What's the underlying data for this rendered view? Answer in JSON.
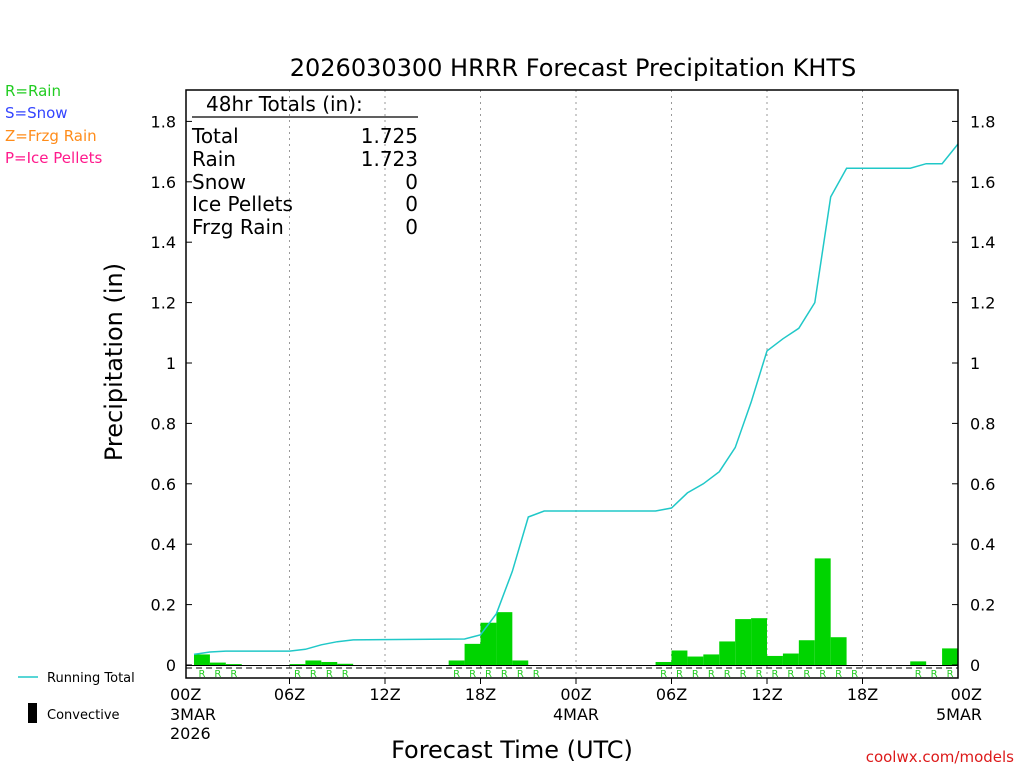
{
  "chart_data": {
    "type": "bar",
    "title": "2026030300 HRRR Forecast Precipitation KHTS",
    "xlabel": "Forecast Time (UTC)",
    "ylabel": "Precipitation (in)",
    "ylim": [
      0,
      1.9
    ],
    "xlim_hours": [
      0,
      48
    ],
    "yticks": [
      0,
      0.2,
      0.4,
      0.6,
      0.8,
      1,
      1.2,
      1.4,
      1.6,
      1.8
    ],
    "ytick_labels": [
      "0",
      "0.2",
      "0.4",
      "0.6",
      "0.8",
      "1",
      "1.2",
      "1.4",
      "1.6",
      "1.8"
    ],
    "xticks": [
      {
        "hour": 0,
        "label": "00Z",
        "sub1": "3MAR",
        "sub2": "2026"
      },
      {
        "hour": 6,
        "label": "06Z",
        "sub1": "",
        "sub2": ""
      },
      {
        "hour": 12,
        "label": "12Z",
        "sub1": "",
        "sub2": ""
      },
      {
        "hour": 18,
        "label": "18Z",
        "sub1": "",
        "sub2": ""
      },
      {
        "hour": 24,
        "label": "00Z",
        "sub1": "4MAR",
        "sub2": ""
      },
      {
        "hour": 30,
        "label": "06Z",
        "sub1": "",
        "sub2": ""
      },
      {
        "hour": 36,
        "label": "12Z",
        "sub1": "",
        "sub2": ""
      },
      {
        "hour": 42,
        "label": "18Z",
        "sub1": "",
        "sub2": ""
      },
      {
        "hour": 48,
        "label": "00Z",
        "sub1": "5MAR",
        "sub2": ""
      }
    ],
    "hourly_precip": {
      "name": "Rain",
      "color": "#00d400",
      "hours": [
        1,
        2,
        3,
        7,
        8,
        9,
        10,
        17,
        18,
        19,
        20,
        21,
        22,
        30,
        31,
        32,
        33,
        34,
        35,
        36,
        37,
        38,
        39,
        40,
        41,
        46,
        48
      ],
      "values": [
        0.035,
        0.008,
        0.003,
        0.003,
        0.015,
        0.01,
        0.004,
        0.015,
        0.07,
        0.14,
        0.175,
        0.015,
        0.0,
        0.01,
        0.048,
        0.028,
        0.035,
        0.078,
        0.152,
        0.155,
        0.03,
        0.038,
        0.082,
        0.353,
        0.092,
        0.012,
        0.055
      ]
    },
    "running_total": {
      "name": "Running Total",
      "color": "#20c8c8",
      "hours": [
        0,
        1,
        2,
        3,
        6,
        7,
        8,
        9,
        10,
        17,
        18,
        19,
        20,
        21,
        22,
        29,
        30,
        31,
        32,
        33,
        34,
        35,
        36,
        37,
        38,
        39,
        40,
        41,
        45,
        46,
        47,
        48
      ],
      "values": [
        0.035,
        0.043,
        0.046,
        0.046,
        0.046,
        0.052,
        0.067,
        0.077,
        0.083,
        0.086,
        0.1,
        0.17,
        0.31,
        0.49,
        0.51,
        0.51,
        0.52,
        0.57,
        0.6,
        0.64,
        0.72,
        0.87,
        1.04,
        1.08,
        1.115,
        1.2,
        1.55,
        1.645,
        1.645,
        1.66,
        1.66,
        1.725
      ]
    },
    "ptype_hours": [
      0.5,
      1.5,
      2.5,
      6.5,
      7.5,
      8.5,
      9.5,
      16.5,
      17.5,
      18.5,
      19.5,
      20.5,
      21.5,
      29.5,
      30.5,
      31.5,
      32.5,
      33.5,
      34.5,
      35.5,
      36.5,
      37.5,
      38.5,
      39.5,
      40.5,
      41.5,
      45.5,
      46.5,
      47.5
    ],
    "ptype_label": "R",
    "totals_box": {
      "title": "48hr Totals (in):",
      "rows": [
        {
          "label": "Total",
          "value": "1.725"
        },
        {
          "label": "Rain",
          "value": "1.723"
        },
        {
          "label": "Snow",
          "value": "0"
        },
        {
          "label": "Ice Pellets",
          "value": "0"
        },
        {
          "label": "Frzg Rain",
          "value": "0"
        }
      ]
    },
    "ptype_legend": [
      {
        "text": "R=Rain",
        "color": "#22cc22"
      },
      {
        "text": "S=Snow",
        "color": "#3344ff"
      },
      {
        "text": "Z=Frzg Rain",
        "color": "#ff8c1a"
      },
      {
        "text": "P=Ice Pellets",
        "color": "#ff1a8c"
      }
    ],
    "series_legend": {
      "running_total": "Running Total",
      "convective": "Convective"
    },
    "credit": "coolwx.com/models"
  }
}
